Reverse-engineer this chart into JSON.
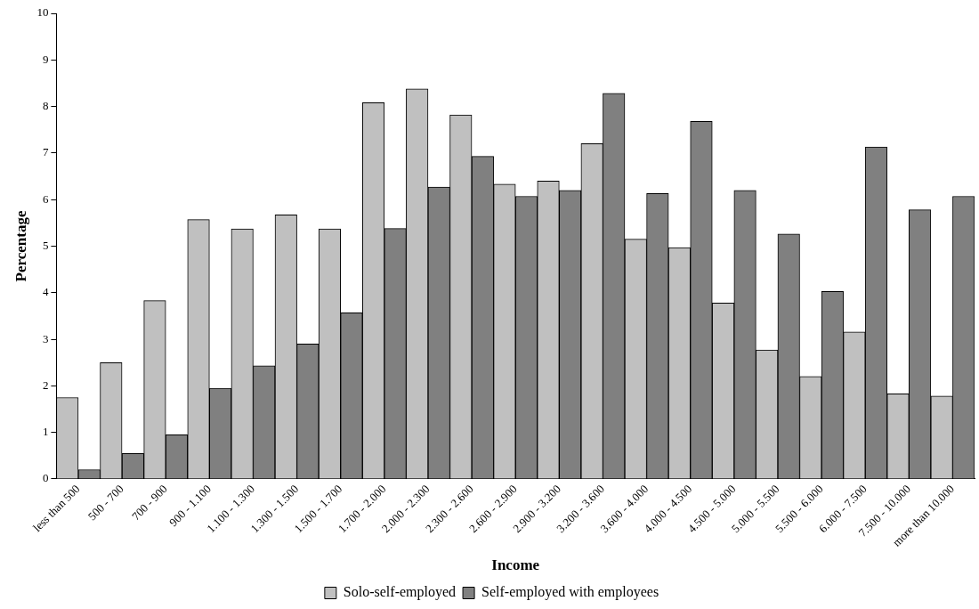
{
  "chart_data": {
    "type": "bar",
    "xlabel": "Income",
    "ylabel": "Percentage",
    "categories": [
      "less than 500",
      "500 - 700",
      "700 - 900",
      "900 - 1.100",
      "1.100 - 1.300",
      "1.300 - 1.500",
      "1.500 - 1.700",
      "1.700 - 2.000",
      "2.000 - 2.300",
      "2.300 - 2.600",
      "2.600 - 2.900",
      "2.900 - 3.200",
      "3.200 - 3.600",
      "3.600 - 4.000",
      "4.000 - 4.500",
      "4.500 - 5.000",
      "5.000 - 5.500",
      "5.500 - 6.000",
      "6.000 - 7.500",
      "7.500 - 10.000",
      "more than 10.000"
    ],
    "series": [
      {
        "name": "Solo-self-employed",
        "color": "#c0c0c0",
        "values": [
          1.75,
          2.5,
          3.83,
          5.57,
          5.37,
          5.67,
          5.37,
          8.08,
          8.38,
          7.82,
          6.33,
          6.4,
          7.2,
          5.15,
          4.97,
          3.78,
          2.77,
          2.2,
          3.16,
          1.83,
          1.78
        ]
      },
      {
        "name": "Self-employed with employees",
        "color": "#808080",
        "values": [
          0.2,
          0.55,
          0.95,
          1.95,
          2.43,
          2.9,
          3.57,
          5.38,
          6.27,
          6.93,
          6.07,
          6.2,
          8.28,
          6.13,
          7.68,
          6.2,
          5.26,
          4.03,
          7.13,
          5.78,
          6.07
        ]
      }
    ],
    "ylim": [
      0,
      10
    ],
    "yticks": [
      0,
      1,
      2,
      3,
      4,
      5,
      6,
      7,
      8,
      9,
      10
    ],
    "grid": false,
    "legend": "bottom"
  }
}
